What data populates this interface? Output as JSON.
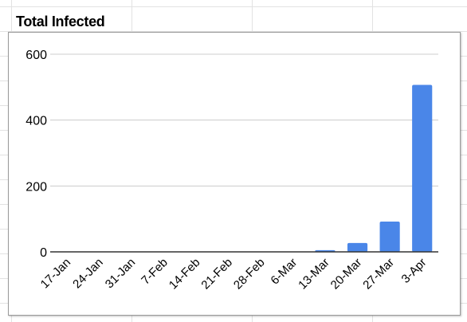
{
  "chart_data": {
    "type": "bar",
    "title": "Total Infected",
    "xlabel": "",
    "ylabel": "",
    "categories": [
      "17-Jan",
      "24-Jan",
      "31-Jan",
      "7-Feb",
      "14-Feb",
      "21-Feb",
      "28-Feb",
      "6-Mar",
      "13-Mar",
      "20-Mar",
      "27-Mar",
      "3-Apr"
    ],
    "values": [
      0,
      0,
      0,
      0,
      0,
      0,
      0,
      0,
      5,
      27,
      92,
      507
    ],
    "ylim": [
      0,
      600
    ],
    "yticks": [
      "0",
      "200",
      "400",
      "600"
    ],
    "grid": true,
    "bar_color": "#4a86e8"
  }
}
